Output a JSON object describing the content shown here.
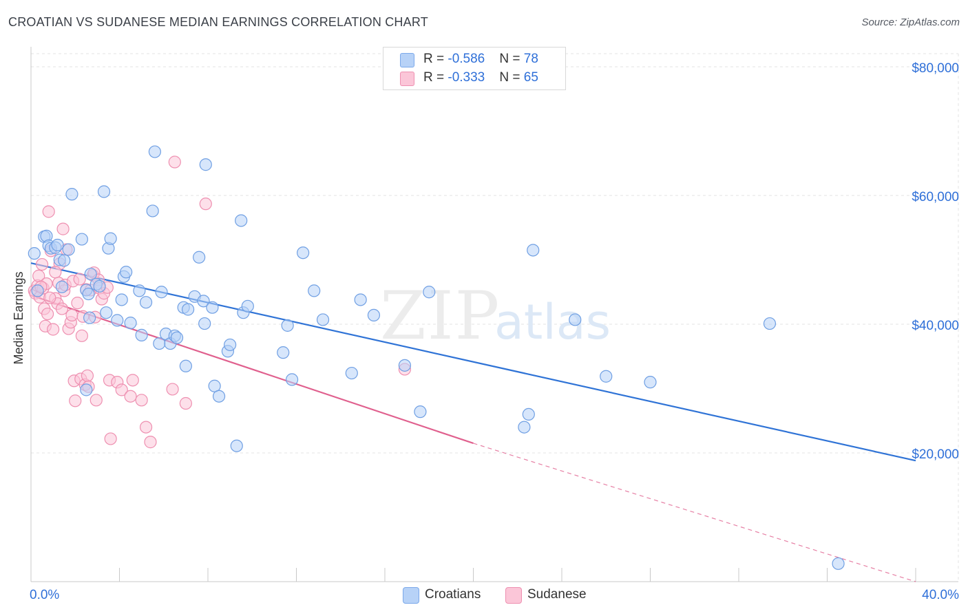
{
  "title": "CROATIAN VS SUDANESE MEDIAN EARNINGS CORRELATION CHART",
  "source": "Source: ZipAtlas.com",
  "watermark": {
    "zip": "ZIP",
    "atlas": "atlas"
  },
  "legend_top": [
    {
      "r_label": "R = ",
      "r_value": "-0.586",
      "n_label": "N = ",
      "n_value": "78"
    },
    {
      "r_label": "R = ",
      "r_value": "-0.333",
      "n_label": "N = ",
      "n_value": "65"
    }
  ],
  "legend_bottom": [
    "Croatians",
    "Sudanese"
  ],
  "colors": {
    "croatians_fill": "#b7d2f7",
    "croatians_stroke": "#6f9fe3",
    "croatians_line": "#2f73d6",
    "sudanese_fill": "#fbc6d8",
    "sudanese_stroke": "#ee8fb0",
    "sudanese_line": "#e0608e",
    "axis_label": "#2e6fd8",
    "grid": "#e3e3e3"
  },
  "chart_data": {
    "type": "scatter",
    "title": "CROATIAN VS SUDANESE MEDIAN EARNINGS CORRELATION CHART",
    "xlabel": "",
    "ylabel": "Median Earnings",
    "xlim": [
      0,
      40
    ],
    "ylim": [
      0,
      80000
    ],
    "x_tick_labels": [
      "0.0%",
      "40.0%"
    ],
    "y_ticks": [
      20000,
      40000,
      60000,
      80000
    ],
    "y_tick_labels": [
      "$20,000",
      "$40,000",
      "$60,000",
      "$80,000"
    ],
    "grid": true,
    "legend_position": "top-center",
    "series": [
      {
        "name": "Croatians",
        "r": -0.586,
        "n": 78,
        "trend": {
          "x0": 0,
          "y0": 49500,
          "x1": 40,
          "y1": 18800,
          "dashed_from": null
        },
        "points": [
          [
            0.15,
            51000
          ],
          [
            0.3,
            45200
          ],
          [
            0.6,
            53600
          ],
          [
            0.7,
            53700
          ],
          [
            0.8,
            52200
          ],
          [
            0.9,
            51800
          ],
          [
            1.1,
            51900
          ],
          [
            1.2,
            52300
          ],
          [
            1.3,
            50000
          ],
          [
            1.5,
            49900
          ],
          [
            1.7,
            51600
          ],
          [
            1.85,
            60200
          ],
          [
            2.3,
            53200
          ],
          [
            1.4,
            45800
          ],
          [
            2.5,
            45300
          ],
          [
            2.6,
            44700
          ],
          [
            2.65,
            41000
          ],
          [
            2.7,
            47800
          ],
          [
            2.95,
            46200
          ],
          [
            3.1,
            45900
          ],
          [
            3.3,
            60600
          ],
          [
            3.4,
            41800
          ],
          [
            3.5,
            51800
          ],
          [
            3.6,
            53300
          ],
          [
            3.9,
            40600
          ],
          [
            4.1,
            43800
          ],
          [
            4.2,
            47400
          ],
          [
            4.3,
            48100
          ],
          [
            4.5,
            40200
          ],
          [
            4.9,
            45200
          ],
          [
            5.0,
            38300
          ],
          [
            5.2,
            43400
          ],
          [
            5.5,
            57600
          ],
          [
            5.6,
            66800
          ],
          [
            5.8,
            37000
          ],
          [
            5.9,
            45000
          ],
          [
            6.1,
            38500
          ],
          [
            6.3,
            37000
          ],
          [
            6.5,
            38200
          ],
          [
            6.6,
            37900
          ],
          [
            6.9,
            42600
          ],
          [
            7.0,
            33500
          ],
          [
            7.1,
            42300
          ],
          [
            7.4,
            44300
          ],
          [
            7.6,
            50400
          ],
          [
            7.8,
            43600
          ],
          [
            7.85,
            40100
          ],
          [
            7.9,
            64800
          ],
          [
            8.2,
            42600
          ],
          [
            8.3,
            30400
          ],
          [
            8.5,
            28800
          ],
          [
            8.9,
            35800
          ],
          [
            9.0,
            36800
          ],
          [
            9.3,
            21100
          ],
          [
            9.5,
            56100
          ],
          [
            9.6,
            41800
          ],
          [
            9.8,
            42800
          ],
          [
            11.4,
            35600
          ],
          [
            11.6,
            39800
          ],
          [
            11.8,
            31400
          ],
          [
            12.3,
            51100
          ],
          [
            12.8,
            45200
          ],
          [
            13.2,
            40700
          ],
          [
            14.5,
            32400
          ],
          [
            14.9,
            43800
          ],
          [
            15.5,
            41400
          ],
          [
            16.9,
            33600
          ],
          [
            17.6,
            26400
          ],
          [
            18.0,
            45000
          ],
          [
            22.3,
            24000
          ],
          [
            22.5,
            26000
          ],
          [
            22.7,
            51500
          ],
          [
            24.6,
            40700
          ],
          [
            26.0,
            31900
          ],
          [
            28.0,
            31000
          ],
          [
            33.4,
            40100
          ],
          [
            36.5,
            2800
          ],
          [
            2.5,
            29800
          ]
        ]
      },
      {
        "name": "Sudanese",
        "r": -0.333,
        "n": 65,
        "trend": {
          "x0": 0,
          "y0": 44500,
          "x1": 20,
          "y1": 21500,
          "dashed_to_x": 40,
          "dashed_to_y": 0
        },
        "points": [
          [
            0.15,
            45200
          ],
          [
            0.2,
            44800
          ],
          [
            0.3,
            46000
          ],
          [
            0.35,
            47500
          ],
          [
            0.4,
            44200
          ],
          [
            0.5,
            49300
          ],
          [
            0.55,
            45600
          ],
          [
            0.6,
            42400
          ],
          [
            0.65,
            39700
          ],
          [
            0.7,
            46300
          ],
          [
            0.75,
            41600
          ],
          [
            0.8,
            57500
          ],
          [
            0.9,
            51400
          ],
          [
            1.0,
            39200
          ],
          [
            1.1,
            44000
          ],
          [
            1.2,
            43200
          ],
          [
            1.25,
            46400
          ],
          [
            1.3,
            49400
          ],
          [
            1.4,
            42400
          ],
          [
            1.45,
            54800
          ],
          [
            1.5,
            45200
          ],
          [
            1.55,
            46100
          ],
          [
            1.6,
            51600
          ],
          [
            1.7,
            39300
          ],
          [
            1.8,
            40300
          ],
          [
            1.85,
            41400
          ],
          [
            1.9,
            46700
          ],
          [
            1.95,
            31200
          ],
          [
            2.0,
            28100
          ],
          [
            2.1,
            43300
          ],
          [
            2.2,
            47000
          ],
          [
            2.25,
            31500
          ],
          [
            2.3,
            38200
          ],
          [
            2.35,
            41200
          ],
          [
            2.45,
            30600
          ],
          [
            2.5,
            45400
          ],
          [
            2.55,
            32000
          ],
          [
            2.6,
            30300
          ],
          [
            2.7,
            45300
          ],
          [
            2.8,
            47600
          ],
          [
            2.85,
            48000
          ],
          [
            2.9,
            41100
          ],
          [
            2.95,
            28200
          ],
          [
            3.05,
            46900
          ],
          [
            3.1,
            45600
          ],
          [
            3.2,
            43900
          ],
          [
            3.3,
            44800
          ],
          [
            3.45,
            45700
          ],
          [
            3.55,
            31300
          ],
          [
            3.6,
            22200
          ],
          [
            3.9,
            31000
          ],
          [
            4.1,
            29800
          ],
          [
            4.5,
            28800
          ],
          [
            4.6,
            31300
          ],
          [
            5.0,
            28200
          ],
          [
            5.2,
            24000
          ],
          [
            5.4,
            21700
          ],
          [
            6.4,
            29900
          ],
          [
            6.5,
            65200
          ],
          [
            7.0,
            27700
          ],
          [
            7.9,
            58700
          ],
          [
            16.9,
            33000
          ],
          [
            1.1,
            48100
          ],
          [
            0.45,
            45800
          ],
          [
            0.85,
            44100
          ]
        ]
      }
    ]
  }
}
